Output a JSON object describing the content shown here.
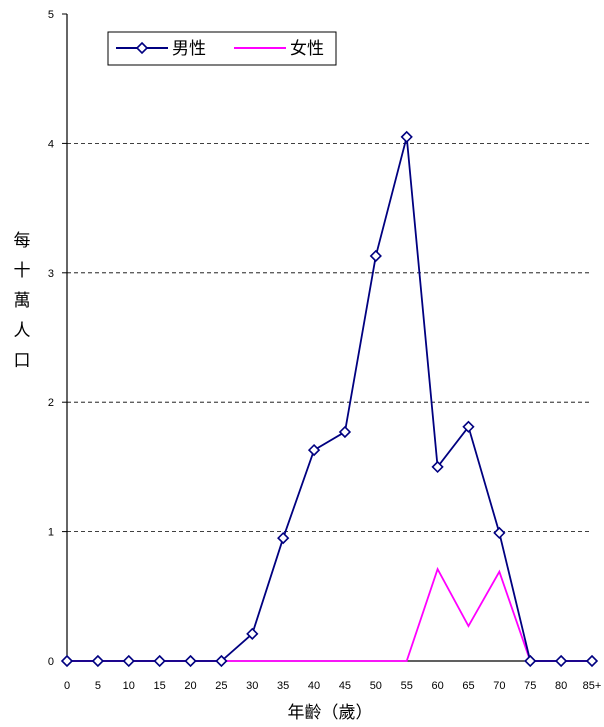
{
  "chart_data": {
    "type": "line",
    "title": "",
    "xlabel": "年齡（歲）",
    "ylabel": "每十萬人口",
    "categories": [
      "0",
      "5",
      "10",
      "15",
      "20",
      "25",
      "30",
      "35",
      "40",
      "45",
      "50",
      "55",
      "60",
      "65",
      "70",
      "75",
      "80",
      "85+"
    ],
    "ylim": [
      0,
      5
    ],
    "yticks": [
      "0",
      "1",
      "2",
      "3",
      "4",
      "5"
    ],
    "grid": "horizontal-dashed",
    "legend_position": "top-left",
    "series": [
      {
        "name": "男性",
        "color": "#000080",
        "marker": "diamond",
        "values": [
          0,
          0,
          0,
          0,
          0,
          0,
          0.21,
          0.95,
          1.63,
          1.77,
          3.13,
          4.05,
          1.5,
          1.81,
          0.99,
          0,
          0,
          0
        ]
      },
      {
        "name": "女性",
        "color": "#ff00ff",
        "marker": "none",
        "values": [
          0,
          0,
          0,
          0,
          0,
          0,
          0,
          0,
          0,
          0,
          0,
          0,
          0.71,
          0.27,
          0.69,
          0,
          0,
          0
        ]
      }
    ]
  }
}
